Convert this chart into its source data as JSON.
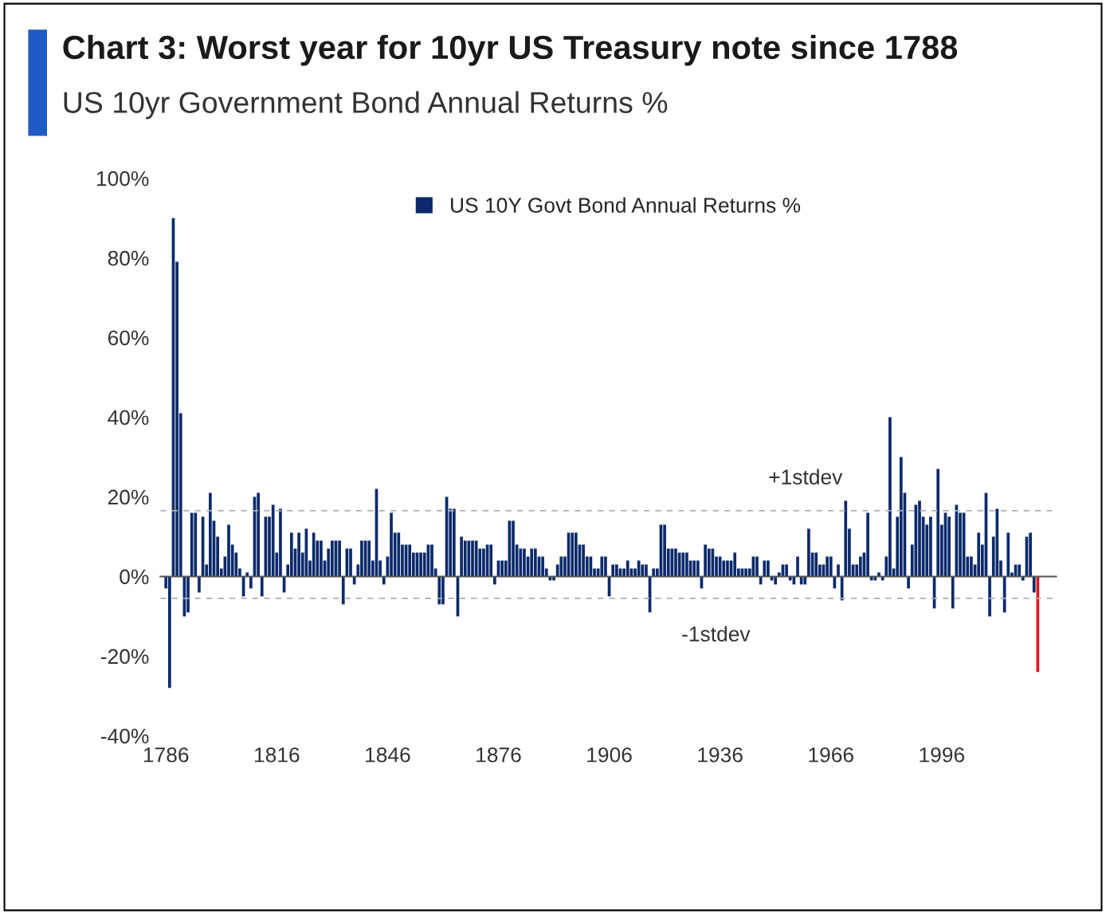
{
  "chart_data": {
    "type": "bar",
    "title": "Chart 3: Worst year for 10yr US Treasury note since 1788",
    "subtitle": "US 10yr Government Bond Annual Returns %",
    "series": [
      {
        "name": "US 10Y Govt Bond Annual Returns %",
        "color": "#0c2a6b",
        "x": [
          1786,
          1787,
          1788,
          1789,
          1790,
          1791,
          1792,
          1793,
          1794,
          1795,
          1796,
          1797,
          1798,
          1799,
          1800,
          1801,
          1802,
          1803,
          1804,
          1805,
          1806,
          1807,
          1808,
          1809,
          1810,
          1811,
          1812,
          1813,
          1814,
          1815,
          1816,
          1817,
          1818,
          1819,
          1820,
          1821,
          1822,
          1823,
          1824,
          1825,
          1826,
          1827,
          1828,
          1829,
          1830,
          1831,
          1832,
          1833,
          1834,
          1835,
          1836,
          1837,
          1838,
          1839,
          1840,
          1841,
          1842,
          1843,
          1844,
          1845,
          1846,
          1847,
          1848,
          1849,
          1850,
          1851,
          1852,
          1853,
          1854,
          1855,
          1856,
          1857,
          1858,
          1859,
          1860,
          1861,
          1862,
          1863,
          1864,
          1865,
          1866,
          1867,
          1868,
          1869,
          1870,
          1871,
          1872,
          1873,
          1874,
          1875,
          1876,
          1877,
          1878,
          1879,
          1880,
          1881,
          1882,
          1883,
          1884,
          1885,
          1886,
          1887,
          1888,
          1889,
          1890,
          1891,
          1892,
          1893,
          1894,
          1895,
          1896,
          1897,
          1898,
          1899,
          1900,
          1901,
          1902,
          1903,
          1904,
          1905,
          1906,
          1907,
          1908,
          1909,
          1910,
          1911,
          1912,
          1913,
          1914,
          1915,
          1916,
          1917,
          1918,
          1919,
          1920,
          1921,
          1922,
          1923,
          1924,
          1925,
          1926,
          1927,
          1928,
          1929,
          1930,
          1931,
          1932,
          1933,
          1934,
          1935,
          1936,
          1937,
          1938,
          1939,
          1940,
          1941,
          1942,
          1943,
          1944,
          1945,
          1946,
          1947,
          1948,
          1949,
          1950,
          1951,
          1952,
          1953,
          1954,
          1955,
          1956,
          1957,
          1958,
          1959,
          1960,
          1961,
          1962,
          1963,
          1964,
          1965,
          1966,
          1967,
          1968,
          1969,
          1970,
          1971,
          1972,
          1973,
          1974,
          1975,
          1976,
          1977,
          1978,
          1979,
          1980,
          1981,
          1982,
          1983,
          1984,
          1985,
          1986,
          1987,
          1988,
          1989,
          1990,
          1991,
          1992,
          1993,
          1994,
          1995,
          1996,
          1997,
          1998,
          1999,
          2000,
          2001,
          2002,
          2003,
          2004,
          2005,
          2006,
          2007,
          2008,
          2009,
          2010,
          2011,
          2012,
          2013,
          2014,
          2015,
          2016,
          2017,
          2018,
          2019,
          2020,
          2021
        ],
        "values": [
          -3,
          -28,
          90,
          79,
          41,
          -10,
          -9,
          16,
          16,
          -4,
          15,
          3,
          21,
          14,
          10,
          2,
          5,
          13,
          8,
          6,
          2,
          -5,
          1,
          -3,
          20,
          21,
          -5,
          15,
          15,
          18,
          6,
          17,
          -4,
          3,
          11,
          7,
          11,
          6,
          12,
          4,
          11,
          9,
          9,
          4,
          7,
          9,
          9,
          9,
          -7,
          7,
          7,
          -2,
          3,
          9,
          9,
          9,
          4,
          22,
          4,
          -2,
          5,
          16,
          11,
          11,
          8,
          8,
          8,
          6,
          6,
          6,
          6,
          8,
          8,
          2,
          -7,
          -7,
          20,
          17,
          17,
          -10,
          10,
          9,
          9,
          9,
          9,
          7,
          7,
          8,
          8,
          -2,
          4,
          4,
          4,
          14,
          14,
          8,
          7,
          7,
          5,
          7,
          7,
          5,
          5,
          2,
          -1,
          -1,
          3,
          5,
          5,
          11,
          11,
          11,
          8,
          8,
          5,
          5,
          2,
          2,
          5,
          5,
          -5,
          3,
          3,
          2,
          2,
          4,
          2,
          2,
          4,
          3,
          3,
          -9,
          2,
          2,
          13,
          13,
          7,
          7,
          7,
          6,
          6,
          6,
          4,
          4,
          4,
          -3,
          8,
          7,
          7,
          5,
          5,
          4,
          4,
          4,
          6,
          2,
          2,
          2,
          2,
          5,
          5,
          -2,
          4,
          4,
          -1,
          -2,
          1,
          3,
          3,
          -1,
          -2,
          5,
          -2,
          -2,
          12,
          6,
          6,
          3,
          3,
          5,
          5,
          -3,
          3,
          -6,
          19,
          12,
          3,
          3,
          5,
          6,
          16,
          -1,
          -1,
          1,
          -1,
          5,
          40,
          2,
          15,
          30,
          21,
          -3,
          8,
          18,
          19,
          15,
          13,
          15,
          -8,
          27,
          13,
          16,
          15,
          -8,
          18,
          16,
          16,
          5,
          5,
          3,
          11,
          8,
          21,
          -10,
          10,
          17,
          4,
          -9,
          11,
          1,
          3,
          3,
          -1,
          10,
          11,
          -4
        ]
      },
      {
        "color": "#e0161d",
        "x": [
          2022
        ],
        "values": [
          -24
        ]
      }
    ],
    "xlim": [
      1784.5,
      2027
    ],
    "xticks": [
      1786,
      1816,
      1846,
      1876,
      1906,
      1936,
      1966,
      1996
    ],
    "ylim": [
      -40,
      100
    ],
    "yticks": [
      {
        "value": -40,
        "label": "-40%"
      },
      {
        "value": -20,
        "label": "-20%"
      },
      {
        "value": 0,
        "label": "0%"
      },
      {
        "value": 20,
        "label": "20%"
      },
      {
        "value": 40,
        "label": "40%"
      },
      {
        "value": 60,
        "label": "60%"
      },
      {
        "value": 80,
        "label": "80%"
      },
      {
        "value": 100,
        "label": "100%"
      }
    ],
    "ref_lines": [
      {
        "axis": "y",
        "value": 16.5,
        "label": "+1stdev",
        "color": "#b0b0b0",
        "line_style": "dashed"
      },
      {
        "axis": "y",
        "value": -5.5,
        "label": "-1stdev",
        "color": "#b0b0b0",
        "line_style": "dashed"
      }
    ],
    "legend": "top"
  }
}
